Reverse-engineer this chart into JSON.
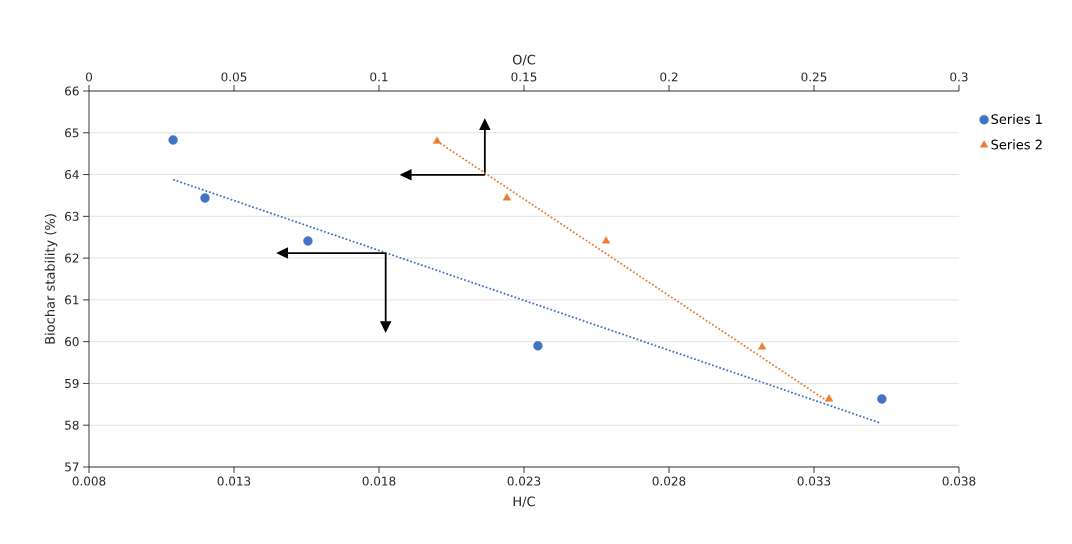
{
  "chart_data": {
    "type": "scatter",
    "xlabel": "H/C",
    "x2label": "O/C",
    "ylabel": "Biochar stability (%)",
    "xlim": [
      0.008,
      0.038
    ],
    "xticks": [
      0.008,
      0.013,
      0.018,
      0.023,
      0.028,
      0.033,
      0.038
    ],
    "x2lim": [
      0,
      0.3
    ],
    "x2ticks": [
      0,
      0.05,
      0.1,
      0.15,
      0.2,
      0.25,
      0.3
    ],
    "ylim": [
      57,
      66
    ],
    "yticks": [
      57,
      58,
      59,
      60,
      61,
      62,
      63,
      64,
      65,
      66
    ],
    "grid": "y",
    "legend": "right",
    "series": [
      {
        "name": "Series 1",
        "color": "#4472c4",
        "marker": "circle",
        "x": [
          0.0109,
          0.012,
          0.01555,
          0.02348,
          0.03534
        ],
        "values": [
          64.83,
          63.44,
          62.41,
          59.9,
          58.63
        ]
      },
      {
        "name": "Series 2",
        "color": "#ed7d31",
        "marker": "triangle",
        "axis": "x2",
        "x": [
          0.12,
          0.1441,
          0.1783,
          0.2321,
          0.2552
        ],
        "values": [
          64.8,
          63.44,
          62.41,
          59.87,
          58.63
        ]
      },
      {
        "type": "line",
        "line_style": "dotted",
        "color": "#4472c4",
        "x": [
          0.0109,
          0.0353
        ],
        "values": [
          63.88,
          58.05
        ]
      },
      {
        "type": "line",
        "line_style": "dotted",
        "color": "#ed7d31",
        "axis": "x2",
        "x": [
          0.12,
          0.2552
        ],
        "values": [
          64.8,
          58.55
        ]
      }
    ]
  }
}
